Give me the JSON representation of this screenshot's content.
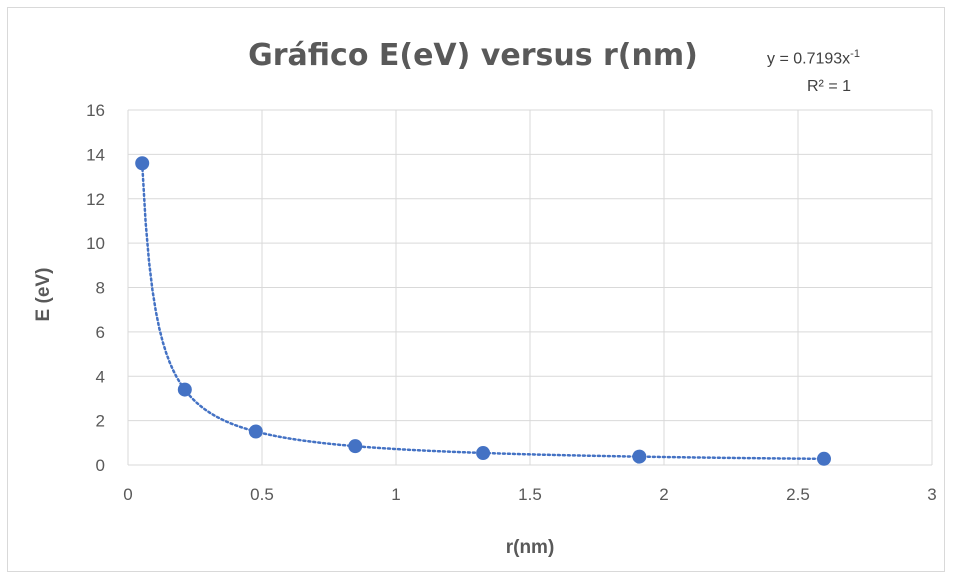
{
  "chart_data": {
    "type": "scatter",
    "title": "Gráfico E(eV) versus r(nm)",
    "xlabel": "r(nm)",
    "ylabel": "E (eV)",
    "xlim": [
      0,
      3
    ],
    "ylim": [
      0,
      16
    ],
    "x_ticks": [
      "0",
      "0.5",
      "1",
      "1.5",
      "2",
      "2.5",
      "3"
    ],
    "y_ticks": [
      "0",
      "2",
      "4",
      "6",
      "8",
      "10",
      "12",
      "14",
      "16"
    ],
    "grid": true,
    "legend": "none",
    "marker_color": "#4472c4",
    "trendline": {
      "type": "power",
      "coefficient": 0.7193,
      "exponent": -1,
      "equation_text": "y = 0.7193x",
      "equation_exponent": "-1",
      "r_squared_text": "R² = 1",
      "color": "#4472c4",
      "style": "dotted"
    },
    "series": [
      {
        "x": [
          0.053,
          0.212,
          0.477,
          0.848,
          1.325,
          1.908,
          2.597
        ],
        "y": [
          13.6,
          3.4,
          1.51,
          0.85,
          0.54,
          0.38,
          0.28
        ]
      }
    ]
  }
}
